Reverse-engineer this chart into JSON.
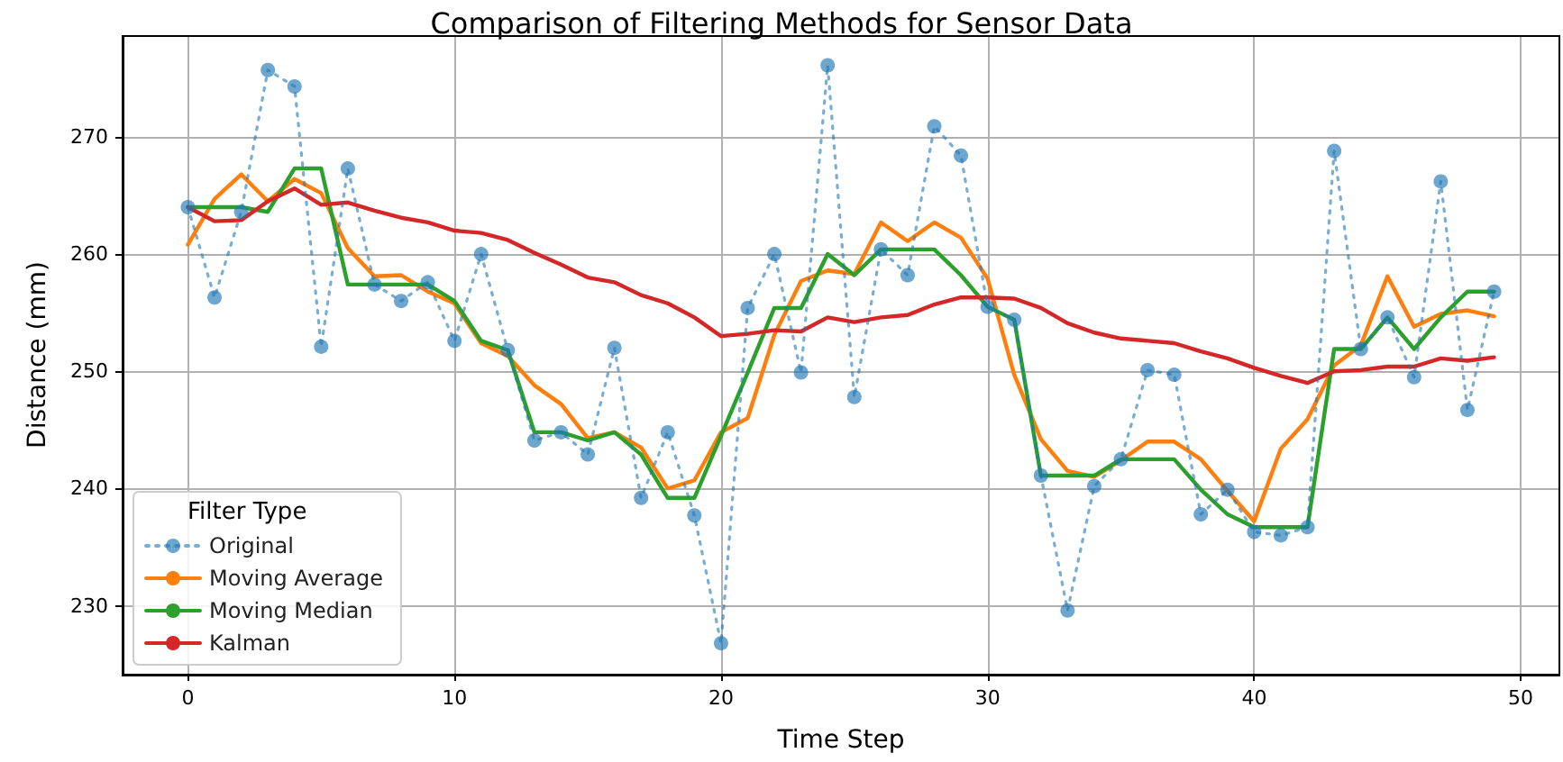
{
  "chart_data": {
    "type": "line",
    "title": "Comparison of Filtering Methods for Sensor Data",
    "xlabel": "Time Step",
    "ylabel": "Distance (mm)",
    "legend_title": "Filter Type",
    "x": [
      0,
      1,
      2,
      3,
      4,
      5,
      6,
      7,
      8,
      9,
      10,
      11,
      12,
      13,
      14,
      15,
      16,
      17,
      18,
      19,
      20,
      21,
      22,
      23,
      24,
      25,
      26,
      27,
      28,
      29,
      30,
      31,
      32,
      33,
      34,
      35,
      36,
      37,
      38,
      39,
      40,
      41,
      42,
      43,
      44,
      45,
      46,
      47,
      48,
      49
    ],
    "series": [
      {
        "name": "Original",
        "color": "#1f77b4",
        "marker": "circle",
        "line_style": "dotted",
        "values": [
          264,
          256.3,
          263.6,
          275.7,
          274.3,
          252.1,
          267.3,
          257.4,
          256,
          257.6,
          252.6,
          260,
          251.8,
          244.1,
          244.8,
          242.9,
          252,
          239.2,
          244.8,
          237.7,
          226.8,
          255.4,
          260,
          249.9,
          276.1,
          247.8,
          260.4,
          258.2,
          270.9,
          268.4,
          255.5,
          254.4,
          241.1,
          229.6,
          240.2,
          242.5,
          250.1,
          249.7,
          237.8,
          239.9,
          236.3,
          236,
          236.7,
          268.8,
          251.9,
          254.6,
          249.5,
          266.2,
          246.7,
          256.8
        ]
      },
      {
        "name": "Moving Average",
        "color": "#ff7f0e",
        "values": [
          260.8,
          264.7,
          266.8,
          264.5,
          266.4,
          265.2,
          260.5,
          258.1,
          258.2,
          256.8,
          255.8,
          252.4,
          251.3,
          248.8,
          247.2,
          244.3,
          244.8,
          243.5,
          240,
          240.7,
          244.8,
          246,
          253.1,
          257.7,
          258.6,
          258.3,
          262.7,
          261.1,
          262.7,
          261.4,
          257.9,
          249.7,
          244.2,
          241.5,
          241,
          242.4,
          244,
          244,
          242.5,
          239.8,
          237.2,
          243.4,
          245.9,
          250.5,
          252.2,
          258.1,
          253.8,
          254.9,
          255.2,
          254.7
        ]
      },
      {
        "name": "Moving Median",
        "color": "#2ca02c",
        "values": [
          264,
          264,
          264,
          263.6,
          267.3,
          267.3,
          257.4,
          257.4,
          257.4,
          257.4,
          256,
          252.6,
          251.8,
          244.8,
          244.8,
          244.1,
          244.8,
          242.9,
          239.2,
          239.2,
          244.5,
          249.9,
          255.4,
          255.4,
          260,
          258.2,
          260.4,
          260.4,
          260.4,
          258.2,
          255.5,
          254.4,
          241.1,
          241.1,
          241.1,
          242.5,
          242.5,
          242.5,
          239.9,
          237.8,
          236.7,
          236.7,
          236.7,
          251.9,
          251.9,
          254.6,
          251.9,
          254.6,
          256.8,
          256.8
        ]
      },
      {
        "name": "Kalman",
        "color": "#d62728",
        "values": [
          264,
          262.8,
          262.9,
          264.5,
          265.6,
          264.2,
          264.4,
          263.7,
          263.1,
          262.7,
          262,
          261.8,
          261.2,
          260.1,
          259.1,
          258,
          257.6,
          256.5,
          255.8,
          254.6,
          253,
          253.2,
          253.5,
          253.4,
          254.6,
          254.2,
          254.6,
          254.8,
          255.7,
          256.3,
          256.3,
          256.2,
          255.4,
          254.1,
          253.3,
          252.8,
          252.6,
          252.4,
          251.7,
          251.1,
          250.3,
          249.6,
          249,
          250,
          250.1,
          250.4,
          250.4,
          251.1,
          250.9,
          251.2
        ]
      }
    ],
    "xlim": [
      -2.45,
      51.45
    ],
    "xticks": [
      0,
      10,
      20,
      30,
      40,
      50
    ],
    "ylim": [
      224.2,
      278.6
    ],
    "yticks": [
      230,
      240,
      250,
      260,
      270
    ],
    "grid": true,
    "legend": "bottom left"
  }
}
